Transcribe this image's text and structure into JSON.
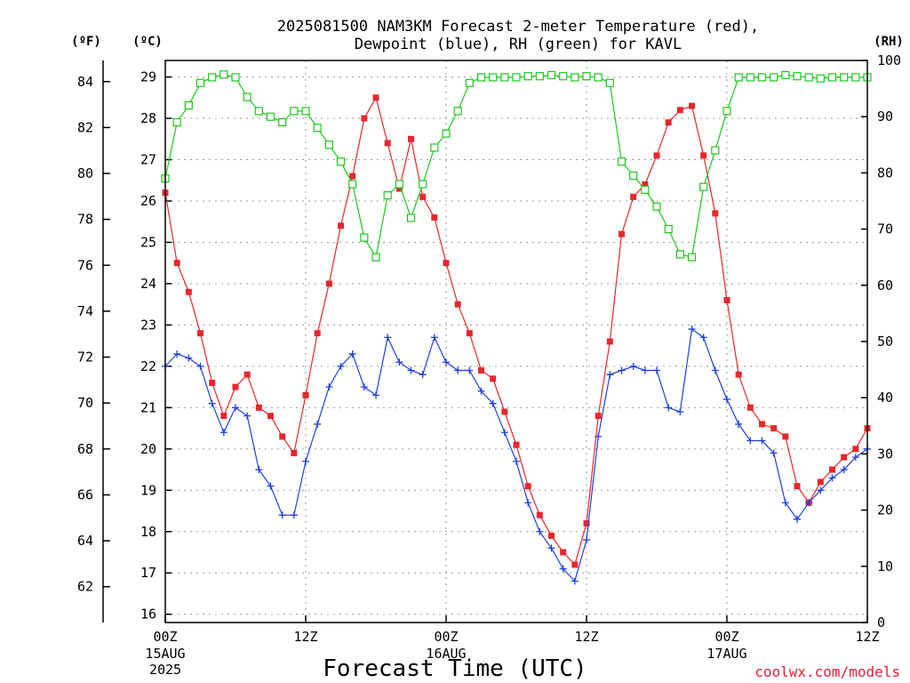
{
  "chart_data": {
    "type": "line",
    "title_line1": "2025081500 NAM3KM Forecast 2-meter Temperature (red),",
    "title_line2": "Dewpoint (blue), RH (green) for KAVL",
    "xlabel": "Forecast Time (UTC)",
    "credit": "coolwx.com/models",
    "units": {
      "fahrenheit": "(ºF)",
      "celsius": "(ºC)",
      "rh": "(RH)"
    },
    "x_hours_range": [
      0,
      60
    ],
    "y_celsius_range": [
      15.8,
      29.4
    ],
    "y_rh_range": [
      0,
      100
    ],
    "x_ticks": [
      {
        "hour": 0,
        "label": "00Z",
        "date": "15AUG",
        "year": "2025"
      },
      {
        "hour": 12,
        "label": "12Z",
        "date": "",
        "year": ""
      },
      {
        "hour": 24,
        "label": "00Z",
        "date": "16AUG",
        "year": ""
      },
      {
        "hour": 36,
        "label": "12Z",
        "date": "",
        "year": ""
      },
      {
        "hour": 48,
        "label": "00Z",
        "date": "17AUG",
        "year": ""
      },
      {
        "hour": 60,
        "label": "12Z",
        "date": "",
        "year": ""
      }
    ],
    "y_celsius_ticks": [
      16,
      17,
      18,
      19,
      20,
      21,
      22,
      23,
      24,
      25,
      26,
      27,
      28,
      29
    ],
    "y_fahrenheit_ticks": [
      62,
      64,
      66,
      68,
      70,
      72,
      74,
      76,
      78,
      80,
      82,
      84
    ],
    "y_rh_ticks": [
      0,
      10,
      20,
      30,
      40,
      50,
      60,
      70,
      80,
      90,
      100
    ],
    "series": [
      {
        "name": "Temperature",
        "unit": "C",
        "color": "#e8272d",
        "marker": "filled-square",
        "hours": [
          0,
          1,
          2,
          3,
          4,
          5,
          6,
          7,
          8,
          9,
          10,
          11,
          12,
          13,
          14,
          15,
          16,
          17,
          18,
          19,
          20,
          21,
          22,
          23,
          24,
          25,
          26,
          27,
          28,
          29,
          30,
          31,
          32,
          33,
          34,
          35,
          36,
          37,
          38,
          39,
          40,
          41,
          42,
          43,
          44,
          45,
          46,
          47,
          48,
          49,
          50,
          51,
          52,
          53,
          54,
          55,
          56,
          57,
          58,
          59,
          60
        ],
        "values": [
          26.2,
          24.5,
          23.8,
          22.8,
          21.6,
          20.8,
          21.5,
          21.8,
          21.0,
          20.8,
          20.3,
          19.9,
          21.3,
          22.8,
          24.0,
          25.4,
          26.6,
          28.0,
          28.5,
          27.4,
          26.3,
          27.5,
          26.1,
          25.6,
          24.5,
          23.5,
          22.8,
          21.9,
          21.7,
          20.9,
          20.1,
          19.1,
          18.4,
          17.9,
          17.5,
          17.2,
          18.2,
          20.8,
          22.6,
          25.2,
          26.1,
          26.4,
          27.1,
          27.9,
          28.2,
          28.3,
          27.1,
          25.7,
          23.6,
          21.8,
          21.0,
          20.6,
          20.5,
          20.3,
          19.1,
          18.7,
          19.2,
          19.5,
          19.8,
          20.0,
          20.5
        ]
      },
      {
        "name": "Dewpoint",
        "unit": "C",
        "color": "#2040e0",
        "marker": "plus",
        "hours": [
          0,
          1,
          2,
          3,
          4,
          5,
          6,
          7,
          8,
          9,
          10,
          11,
          12,
          13,
          14,
          15,
          16,
          17,
          18,
          19,
          20,
          21,
          22,
          23,
          24,
          25,
          26,
          27,
          28,
          29,
          30,
          31,
          32,
          33,
          34,
          35,
          36,
          37,
          38,
          39,
          40,
          41,
          42,
          43,
          44,
          45,
          46,
          47,
          48,
          49,
          50,
          51,
          52,
          53,
          54,
          55,
          56,
          57,
          58,
          59,
          60
        ],
        "values": [
          22.0,
          22.3,
          22.2,
          22.0,
          21.1,
          20.4,
          21.0,
          20.8,
          19.5,
          19.1,
          18.4,
          18.4,
          19.7,
          20.6,
          21.5,
          22.0,
          22.3,
          21.5,
          21.3,
          22.7,
          22.1,
          21.9,
          21.8,
          22.7,
          22.1,
          21.9,
          21.9,
          21.4,
          21.1,
          20.4,
          19.7,
          18.7,
          18.0,
          17.6,
          17.1,
          16.8,
          17.8,
          20.3,
          21.8,
          21.9,
          22.0,
          21.9,
          21.9,
          21.0,
          20.9,
          22.9,
          22.7,
          21.9,
          21.2,
          20.6,
          20.2,
          20.2,
          19.9,
          18.7,
          18.3,
          18.7,
          19.0,
          19.3,
          19.5,
          19.8,
          20.0
        ]
      },
      {
        "name": "RH",
        "unit": "%",
        "color": "#1ec81e",
        "marker": "open-square",
        "hours": [
          0,
          1,
          2,
          3,
          4,
          5,
          6,
          7,
          8,
          9,
          10,
          11,
          12,
          13,
          14,
          15,
          16,
          17,
          18,
          19,
          20,
          21,
          22,
          23,
          24,
          25,
          26,
          27,
          28,
          29,
          30,
          31,
          32,
          33,
          34,
          35,
          36,
          37,
          38,
          39,
          40,
          41,
          42,
          43,
          44,
          45,
          46,
          47,
          48,
          49,
          50,
          51,
          52,
          53,
          54,
          55,
          56,
          57,
          58,
          59,
          60
        ],
        "values": [
          79,
          89,
          92,
          96,
          97,
          97.5,
          97,
          93.5,
          91,
          90,
          89,
          91,
          91,
          88,
          85,
          82,
          78,
          68.5,
          65,
          76,
          78,
          72,
          78,
          84.5,
          87,
          91,
          96,
          97,
          97,
          97,
          97,
          97.2,
          97.2,
          97.4,
          97.2,
          97,
          97.2,
          97,
          96,
          82,
          79.5,
          77,
          74,
          70,
          65.5,
          65,
          77.5,
          84,
          91,
          97,
          97,
          97,
          97,
          97.4,
          97.2,
          97,
          96.8,
          97,
          97,
          97,
          97
        ]
      }
    ]
  }
}
